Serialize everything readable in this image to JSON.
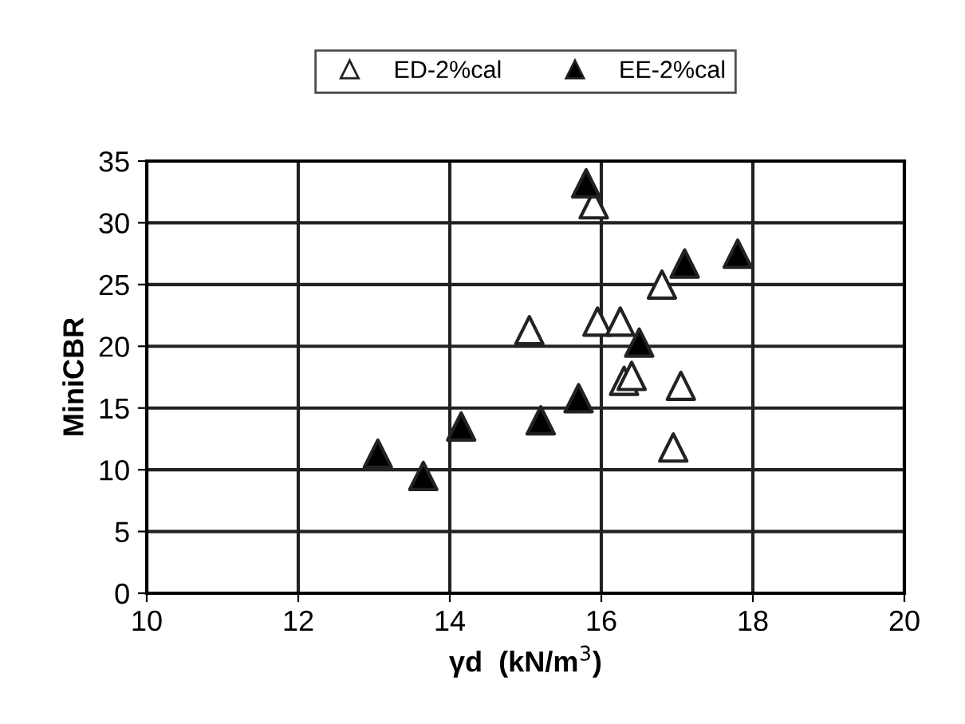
{
  "chart_data": {
    "type": "scatter",
    "xlabel": "γd  (kN/m$^{3}$)",
    "ylabel": "MiniCBR",
    "xlim": [
      10,
      20
    ],
    "xticks": [
      10,
      12,
      14,
      16,
      18,
      20
    ],
    "ylim": [
      0,
      35
    ],
    "yticks": [
      0,
      5,
      10,
      15,
      20,
      25,
      30,
      35
    ],
    "grid": true,
    "legend": "top",
    "marker": "triangle",
    "series": [
      {
        "name": "ED-2%cal",
        "color": "#ffffff",
        "x": [
          15.05,
          15.9,
          15.95,
          16.25,
          16.3,
          16.4,
          16.8,
          17.05,
          16.95
        ],
        "values": [
          21.3,
          31.5,
          22,
          22,
          17.2,
          17.6,
          25,
          16.8,
          11.8
        ]
      },
      {
        "name": "EE-2%cal",
        "color": "#000000",
        "x": [
          13.05,
          13.65,
          14.15,
          15.2,
          15.7,
          15.8,
          16.5,
          17.1,
          17.8
        ],
        "values": [
          11.3,
          9.5,
          13.5,
          14,
          15.8,
          33.2,
          20.3,
          26.7,
          27.5
        ]
      }
    ]
  }
}
